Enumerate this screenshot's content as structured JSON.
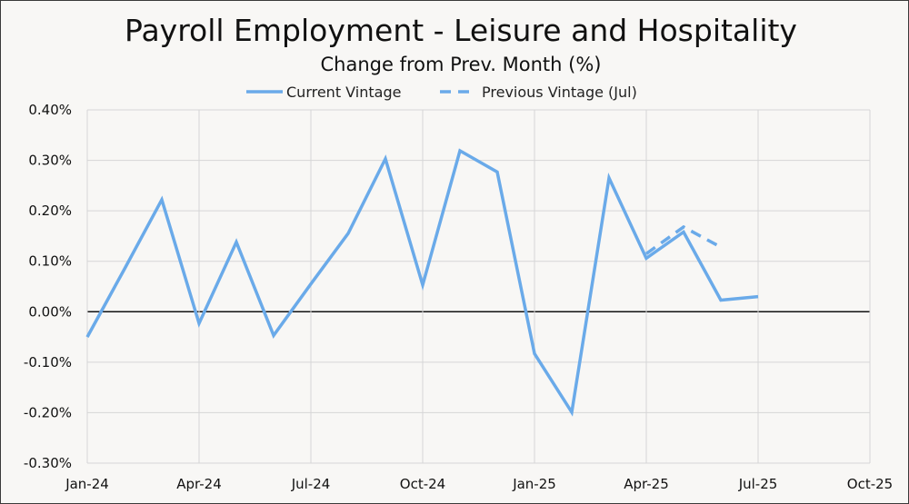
{
  "chart_data": {
    "type": "line",
    "title": "Payroll Employment - Leisure and Hospitality",
    "subtitle": "Change from Prev. Month (%)",
    "legend": [
      "Current Vintage",
      "Previous Vintage (Jul)"
    ],
    "legend_position": "top",
    "x_ticks": [
      "Jan-24",
      "Apr-24",
      "Jul-24",
      "Oct-24",
      "Jan-25",
      "Apr-25",
      "Jul-25",
      "Oct-25"
    ],
    "y_ticks": [
      "0.40%",
      "0.30%",
      "0.20%",
      "0.10%",
      "0.00%",
      "-0.10%",
      "-0.20%",
      "-0.30%"
    ],
    "ylim": [
      -0.3,
      0.4
    ],
    "xlim": [
      "2024-01",
      "2025-10"
    ],
    "grid": true,
    "series": [
      {
        "name": "Current Vintage",
        "style": "solid",
        "color": "#6aaae9",
        "x": [
          "2024-01",
          "2024-02",
          "2024-03",
          "2024-04",
          "2024-05",
          "2024-06",
          "2024-07",
          "2024-08",
          "2024-09",
          "2024-10",
          "2024-11",
          "2024-12",
          "2025-01",
          "2025-02",
          "2025-03",
          "2025-04",
          "2025-05",
          "2025-06",
          "2025-07"
        ],
        "values": [
          -0.05,
          0.085,
          0.222,
          -0.023,
          0.138,
          -0.047,
          0.055,
          0.155,
          0.303,
          0.053,
          0.319,
          0.277,
          -0.083,
          -0.199,
          0.265,
          0.106,
          0.158,
          0.023,
          0.03
        ]
      },
      {
        "name": "Previous Vintage (Jul)",
        "style": "dashed",
        "color": "#6aaae9",
        "x": [
          "2025-04",
          "2025-05",
          "2025-06"
        ],
        "values": [
          0.115,
          0.168,
          0.128
        ]
      }
    ]
  }
}
